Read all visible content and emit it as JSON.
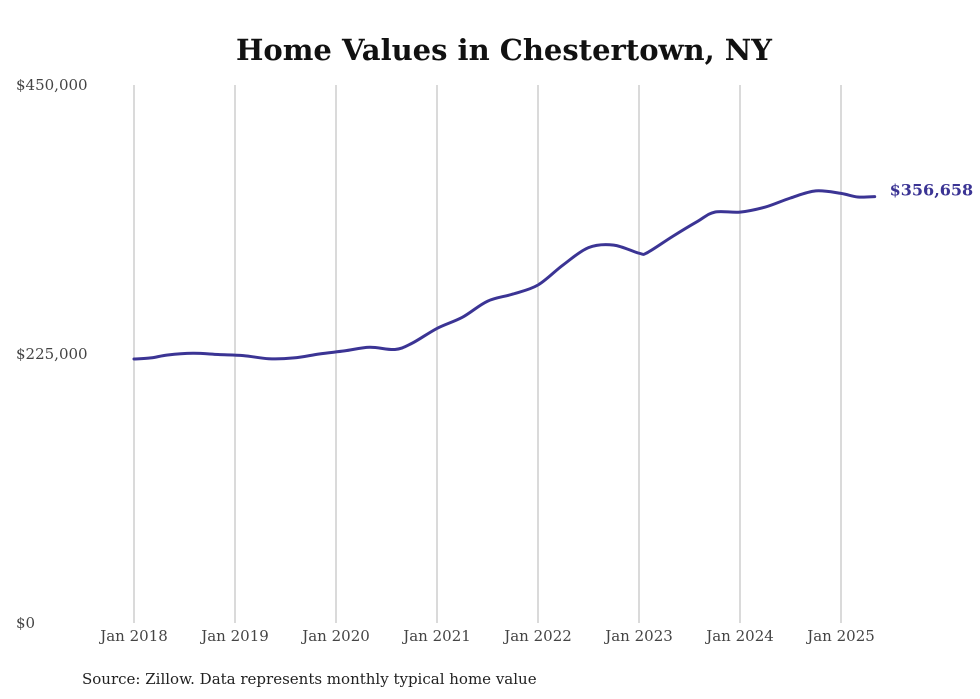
{
  "chart_data": {
    "type": "line",
    "title": "Home Values in Chestertown, NY",
    "source": "Source: Zillow. Data represents monthly typical home value",
    "xlabel": "",
    "ylabel": "",
    "ylim": [
      0,
      450000
    ],
    "y_ticks": [
      {
        "value": 0,
        "label": "$0"
      },
      {
        "value": 225000,
        "label": "$225,000"
      },
      {
        "value": 450000,
        "label": "$450,000"
      }
    ],
    "x_ticks": [
      {
        "value": "2018-01",
        "label": "Jan 2018"
      },
      {
        "value": "2019-01",
        "label": "Jan 2019"
      },
      {
        "value": "2020-01",
        "label": "Jan 2020"
      },
      {
        "value": "2021-01",
        "label": "Jan 2021"
      },
      {
        "value": "2022-01",
        "label": "Jan 2022"
      },
      {
        "value": "2023-01",
        "label": "Jan 2023"
      },
      {
        "value": "2024-01",
        "label": "Jan 2024"
      },
      {
        "value": "2025-01",
        "label": "Jan 2025"
      }
    ],
    "grid": "vertical",
    "line_color": "#3b3494",
    "end_label": "$356,658",
    "series": [
      {
        "points": [
          {
            "x": "2018-01",
            "y": 220800
          },
          {
            "x": "2018-03",
            "y": 221700
          },
          {
            "x": "2018-05",
            "y": 224200
          },
          {
            "x": "2018-08",
            "y": 225600
          },
          {
            "x": "2018-11",
            "y": 224600
          },
          {
            "x": "2019-02",
            "y": 223700
          },
          {
            "x": "2019-05",
            "y": 221100
          },
          {
            "x": "2019-08",
            "y": 221700
          },
          {
            "x": "2019-11",
            "y": 225000
          },
          {
            "x": "2020-02",
            "y": 227600
          },
          {
            "x": "2020-05",
            "y": 230600
          },
          {
            "x": "2020-08",
            "y": 228800
          },
          {
            "x": "2020-10",
            "y": 233900
          },
          {
            "x": "2021-01",
            "y": 246400
          },
          {
            "x": "2021-04",
            "y": 255700
          },
          {
            "x": "2021-07",
            "y": 269200
          },
          {
            "x": "2021-10",
            "y": 275100
          },
          {
            "x": "2022-01",
            "y": 282700
          },
          {
            "x": "2022-04",
            "y": 299600
          },
          {
            "x": "2022-07",
            "y": 314000
          },
          {
            "x": "2022-10",
            "y": 316100
          },
          {
            "x": "2023-01",
            "y": 309300
          },
          {
            "x": "2023-02",
            "y": 309800
          },
          {
            "x": "2023-05",
            "y": 323400
          },
          {
            "x": "2023-08",
            "y": 336100
          },
          {
            "x": "2023-10",
            "y": 343700
          },
          {
            "x": "2024-01",
            "y": 343700
          },
          {
            "x": "2024-04",
            "y": 347900
          },
          {
            "x": "2024-07",
            "y": 355500
          },
          {
            "x": "2024-10",
            "y": 361400
          },
          {
            "x": "2025-01",
            "y": 359300
          },
          {
            "x": "2025-03",
            "y": 356300
          },
          {
            "x": "2025-05",
            "y": 356658
          }
        ]
      }
    ]
  }
}
